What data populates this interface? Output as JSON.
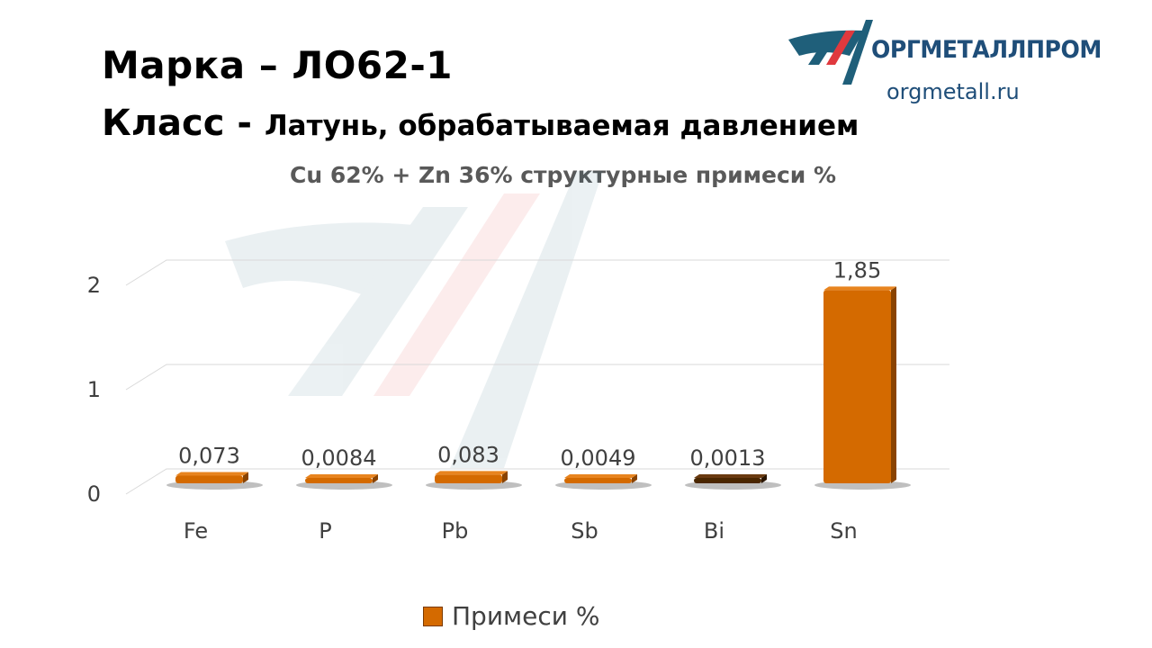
{
  "header": {
    "marka_label": "Марка",
    "marka_value": "ЛО62-1",
    "class_label": "Класс -",
    "class_value": "Латунь, обрабатываемая давлением"
  },
  "logo": {
    "name": "ОРГМЕТАЛЛПРОМ",
    "url": "orgmetall.ru",
    "colors": {
      "blue": "#1f5f7a",
      "red": "#e0393e"
    }
  },
  "chart_data": {
    "type": "bar",
    "title": "Cu 62% + Zn 36% структурные примеси %",
    "categories": [
      "Fe",
      "P",
      "Pb",
      "Sb",
      "Bi",
      "Sn"
    ],
    "series": [
      {
        "name": "Примеси %",
        "values": [
          0.073,
          0.0084,
          0.083,
          0.0049,
          0.0013,
          1.85
        ],
        "labels": [
          "0,073",
          "0,0084",
          "0,083",
          "0,0049",
          "0,0013",
          "1,85"
        ]
      }
    ],
    "yticks": [
      "0",
      "1",
      "2"
    ],
    "ylim": [
      0,
      2.25
    ],
    "grid": true,
    "legend": "bottom",
    "style": "3d-bar",
    "colors": {
      "bar": "#d46a00",
      "bar_side": "#8a4300",
      "bar_top": "#e8841f",
      "bi_bar": "#4a2600",
      "grid": "#d9d9d9"
    }
  }
}
